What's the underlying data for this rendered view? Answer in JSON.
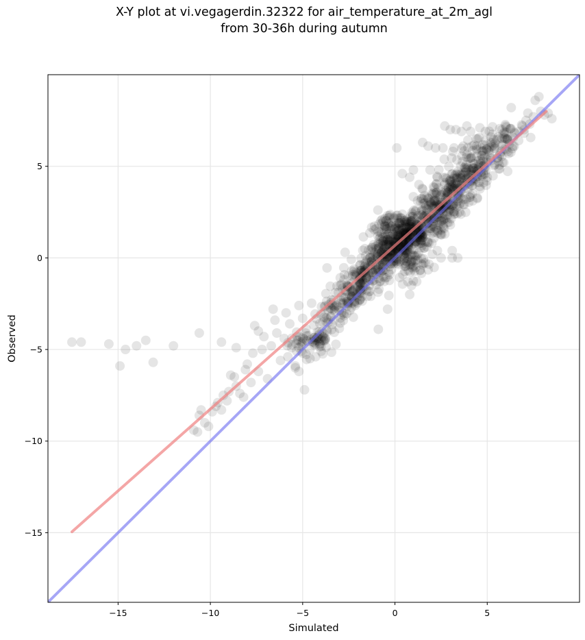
{
  "chart_data": {
    "type": "scatter",
    "title_line1": "X-Y plot at vi.vegagerdin.32322 for air_temperature_at_2m_agl",
    "title_line2": "from 30-36h during autumn",
    "xlabel": "Simulated",
    "ylabel": "Observed",
    "xlim": [
      -18.8,
      10.0
    ],
    "ylim": [
      -18.8,
      10.0
    ],
    "xticks": [
      -15,
      -10,
      -5,
      0,
      5
    ],
    "yticks": [
      -15,
      -10,
      -5,
      0,
      5
    ],
    "xtick_labels": [
      "−15",
      "−10",
      "−5",
      "0",
      "5"
    ],
    "ytick_labels": [
      "−15",
      "−10",
      "−5",
      "0",
      "5"
    ],
    "grid": true,
    "point_color": "#000000",
    "regression_color": "#f08080",
    "identity_color": "#6a6af0",
    "regression_line": {
      "x": [
        -17.5,
        8.2
      ],
      "y": [
        -14.95,
        8.0
      ]
    },
    "identity_line": {
      "x": [
        -18.8,
        10.0
      ],
      "y": [
        -18.8,
        10.0
      ]
    },
    "points": [
      [
        -17.5,
        -4.6
      ],
      [
        -17.0,
        -4.6
      ],
      [
        -15.5,
        -4.7
      ],
      [
        -14.9,
        -5.9
      ],
      [
        -14.6,
        -5.0
      ],
      [
        -14.0,
        -4.8
      ],
      [
        -13.5,
        -4.5
      ],
      [
        -13.1,
        -5.7
      ],
      [
        -12.0,
        -4.8
      ],
      [
        -10.6,
        -4.1
      ],
      [
        -10.9,
        -9.4
      ],
      [
        -10.7,
        -9.5
      ],
      [
        -10.6,
        -8.6
      ],
      [
        -10.5,
        -8.3
      ],
      [
        -10.3,
        -9.0
      ],
      [
        -10.1,
        -9.2
      ],
      [
        -9.9,
        -8.4
      ],
      [
        -9.7,
        -8.1
      ],
      [
        -9.6,
        -7.9
      ],
      [
        -9.4,
        -8.3
      ],
      [
        -9.3,
        -7.5
      ],
      [
        -9.1,
        -7.8
      ],
      [
        -9.0,
        -7.3
      ],
      [
        -8.9,
        -6.4
      ],
      [
        -8.7,
        -6.5
      ],
      [
        -8.6,
        -7.0
      ],
      [
        -8.4,
        -7.4
      ],
      [
        -8.2,
        -7.6
      ],
      [
        -8.1,
        -6.1
      ],
      [
        -8.0,
        -5.8
      ],
      [
        -7.8,
        -6.8
      ],
      [
        -7.7,
        -5.2
      ],
      [
        -7.6,
        -3.7
      ],
      [
        -7.4,
        -6.2
      ],
      [
        -7.2,
        -5.0
      ],
      [
        -7.1,
        -4.3
      ],
      [
        -6.9,
        -6.6
      ],
      [
        -6.7,
        -4.8
      ],
      [
        -6.6,
        -2.8
      ],
      [
        -6.5,
        -3.4
      ],
      [
        -6.4,
        -4.1
      ],
      [
        -6.2,
        -5.6
      ],
      [
        -6.0,
        -4.4
      ],
      [
        -5.9,
        -3.0
      ],
      [
        -5.8,
        -5.4
      ],
      [
        -5.7,
        -3.6
      ],
      [
        -5.6,
        -4.9
      ],
      [
        -5.4,
        -6.0
      ],
      [
        -5.3,
        -4.3
      ],
      [
        -5.2,
        -2.6
      ],
      [
        -9.4,
        -4.6
      ],
      [
        -8.6,
        -4.9
      ],
      [
        -7.4,
        -4.0
      ],
      [
        -4.9,
        -7.2
      ],
      [
        -5.0,
        -5.2
      ],
      [
        -5.0,
        -3.3
      ],
      [
        -5.1,
        -4.6
      ],
      [
        -5.2,
        -6.2
      ],
      [
        -5.4,
        -5.9
      ],
      [
        -4.6,
        -5.5
      ],
      [
        -4.3,
        -5.4
      ],
      [
        -4.0,
        -5.1
      ],
      [
        -2.7,
        0.3
      ],
      [
        -1.9,
        -0.4
      ],
      [
        -1.5,
        -0.1
      ],
      [
        -0.9,
        -3.9
      ],
      [
        -0.4,
        -2.8
      ],
      [
        0.7,
        -1.3
      ],
      [
        0.8,
        -2.0
      ],
      [
        0.9,
        -1.5
      ],
      [
        0.4,
        4.6
      ],
      [
        0.8,
        4.4
      ],
      [
        1.0,
        4.8
      ],
      [
        1.3,
        4.0
      ],
      [
        1.6,
        3.4
      ],
      [
        1.5,
        6.3
      ],
      [
        1.8,
        6.1
      ],
      [
        2.2,
        6.0
      ],
      [
        2.7,
        7.2
      ],
      [
        3.0,
        7.0
      ],
      [
        3.3,
        7.0
      ],
      [
        3.6,
        6.9
      ],
      [
        3.9,
        7.2
      ],
      [
        4.1,
        6.9
      ],
      [
        2.3,
        4.4
      ],
      [
        1.9,
        4.8
      ],
      [
        2.0,
        0.8
      ],
      [
        2.3,
        0.4
      ],
      [
        3.1,
        0.4
      ],
      [
        3.1,
        0.0
      ],
      [
        2.5,
        0.0
      ],
      [
        3.4,
        0.0
      ],
      [
        2.8,
        2.1
      ],
      [
        3.0,
        1.8
      ],
      [
        3.5,
        2.5
      ],
      [
        3.4,
        3.1
      ],
      [
        4.0,
        4.4
      ],
      [
        4.3,
        4.9
      ],
      [
        4.6,
        3.9
      ],
      [
        4.8,
        4.1
      ],
      [
        5.0,
        4.4
      ],
      [
        5.2,
        5.3
      ],
      [
        5.4,
        6.1
      ],
      [
        5.6,
        6.6
      ],
      [
        5.8,
        7.0
      ],
      [
        6.0,
        7.2
      ],
      [
        6.3,
        8.2
      ],
      [
        6.5,
        6.8
      ],
      [
        6.7,
        6.4
      ],
      [
        7.0,
        7.0
      ],
      [
        7.1,
        7.5
      ],
      [
        7.3,
        7.3
      ],
      [
        7.5,
        7.7
      ],
      [
        7.6,
        8.6
      ],
      [
        7.8,
        8.8
      ],
      [
        7.9,
        8.0
      ],
      [
        8.1,
        7.8
      ],
      [
        8.3,
        7.9
      ],
      [
        8.5,
        7.6
      ],
      [
        7.2,
        7.9
      ],
      [
        6.9,
        7.2
      ],
      [
        6.1,
        5.8
      ],
      [
        5.7,
        5.7
      ],
      [
        5.4,
        5.1
      ],
      [
        5.9,
        5.2
      ],
      [
        3.2,
        6.0
      ],
      [
        3.7,
        6.1
      ],
      [
        4.4,
        6.5
      ],
      [
        4.6,
        7.1
      ],
      [
        4.9,
        6.9
      ],
      [
        6.2,
        6.4
      ],
      [
        6.4,
        6.1
      ],
      [
        0.1,
        6.0
      ],
      [
        2.6,
        6.0
      ],
      [
        3.1,
        3.3
      ],
      [
        2.9,
        3.8
      ],
      [
        3.7,
        3.9
      ],
      [
        1.2,
        1.5
      ],
      [
        -0.1,
        1.3
      ]
    ],
    "cluster_centers": [
      [
        -4.6,
        -4.6,
        1.0,
        0.6,
        40
      ],
      [
        -3.4,
        -3.0,
        0.9,
        0.7,
        50
      ],
      [
        -2.4,
        -2.0,
        0.8,
        0.7,
        60
      ],
      [
        -1.8,
        -1.1,
        0.9,
        0.8,
        80
      ],
      [
        -0.8,
        -0.2,
        0.9,
        0.8,
        110
      ],
      [
        0.0,
        0.6,
        1.0,
        0.9,
        140
      ],
      [
        0.6,
        1.1,
        1.0,
        0.9,
        140
      ],
      [
        1.2,
        1.6,
        1.0,
        0.9,
        110
      ],
      [
        1.9,
        2.3,
        0.9,
        0.9,
        90
      ],
      [
        2.6,
        3.0,
        0.9,
        0.9,
        80
      ],
      [
        3.3,
        3.8,
        0.9,
        0.9,
        80
      ],
      [
        4.0,
        4.6,
        0.9,
        0.9,
        70
      ],
      [
        4.7,
        5.3,
        0.9,
        0.9,
        55
      ],
      [
        5.4,
        6.0,
        0.8,
        0.8,
        40
      ],
      [
        6.2,
        6.7,
        0.7,
        0.7,
        25
      ],
      [
        -0.4,
        1.8,
        0.8,
        0.6,
        40
      ],
      [
        1.0,
        -0.4,
        0.8,
        0.6,
        40
      ],
      [
        -3.9,
        -4.4,
        0.7,
        0.5,
        30
      ]
    ]
  }
}
